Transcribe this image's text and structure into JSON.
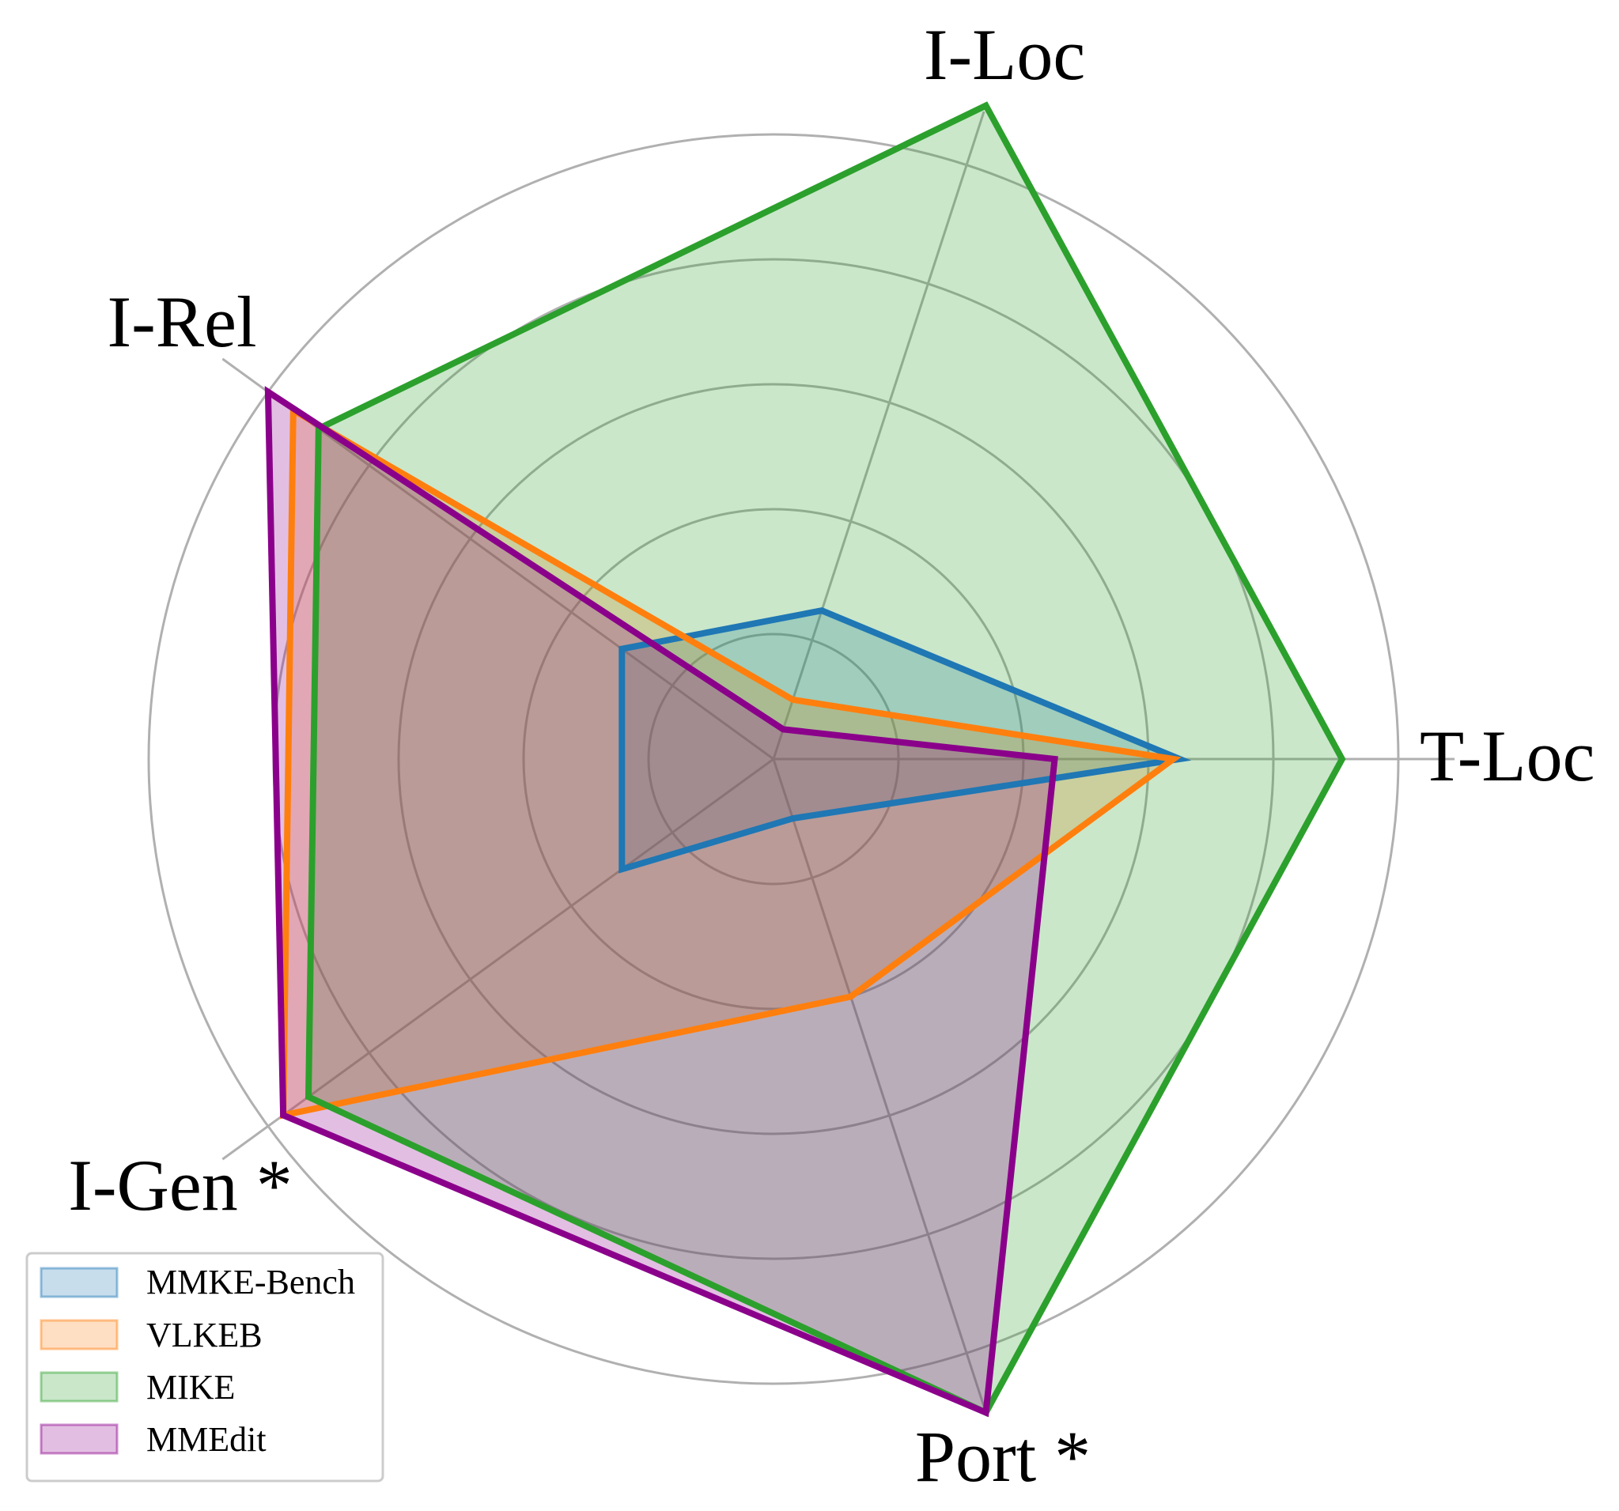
{
  "chart_data": {
    "type": "radar",
    "title": "",
    "axes": [
      "T-Loc",
      "I-Loc",
      "I-Rel",
      "I-Gen *",
      "Port *"
    ],
    "rlim": [
      0,
      1
    ],
    "grid": true,
    "gridlines": [
      0.2,
      0.4,
      0.6,
      0.8,
      1.0
    ],
    "legend_position": "bottom-left",
    "series": [
      {
        "name": "MMKE-Bench",
        "color": "#1f77b4",
        "values": [
          0.65,
          0.25,
          0.3,
          0.3,
          0.1
        ]
      },
      {
        "name": "VLKEB",
        "color": "#ff7f0e",
        "values": [
          0.64,
          0.1,
          0.95,
          0.97,
          0.4
        ]
      },
      {
        "name": "MIKE",
        "color": "#2ca02c",
        "values": [
          0.91,
          1.1,
          0.9,
          0.92,
          1.1
        ]
      },
      {
        "name": "MMEdit",
        "color": "#8b008b",
        "values": [
          0.45,
          0.05,
          1.0,
          0.97,
          1.1
        ]
      }
    ]
  }
}
